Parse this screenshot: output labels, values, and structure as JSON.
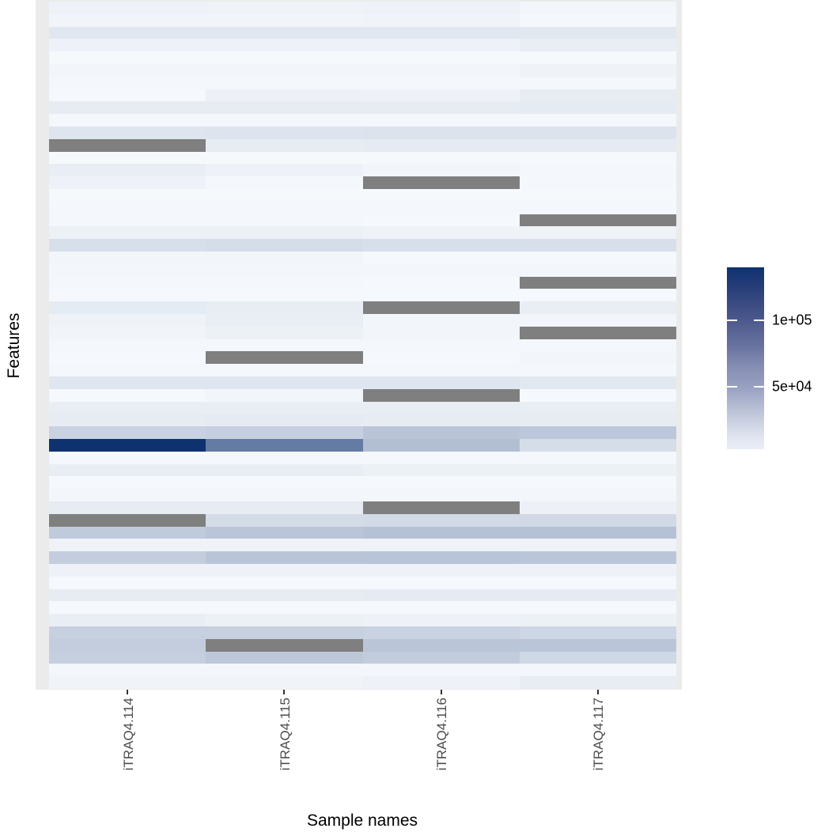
{
  "figure": {
    "x_axis_title": "Sample names",
    "y_axis_title": "Features"
  },
  "chart_data": {
    "type": "heatmap",
    "title": "",
    "xlabel": "Sample names",
    "ylabel": "Features",
    "legend_position": "right",
    "grid": false,
    "y_tick_labels_shown": false,
    "columns": [
      "iTRAQ4.114",
      "iTRAQ4.115",
      "iTRAQ4.116",
      "iTRAQ4.117"
    ],
    "n_rows": 55,
    "na_color": "#7f7f7f",
    "colors": {
      "scale_low": "#f7fafd",
      "scale_high": "#0e3270",
      "panel_background": "#ebebeb",
      "axis_text": "#4d4d4d",
      "axis_title": "#000000",
      "tick_mark": "#333333"
    },
    "scale": {
      "min": 3000,
      "max": 140000,
      "ticks": [
        {
          "value": 100000,
          "label": "1e+05"
        },
        {
          "value": 50000,
          "label": "5e+04"
        }
      ]
    },
    "values": [
      [
        8300,
        7700,
        8300,
        5900
      ],
      [
        6500,
        6500,
        7100,
        4800
      ],
      [
        15900,
        15900,
        15900,
        15300
      ],
      [
        8300,
        8300,
        8300,
        11200
      ],
      [
        3600,
        3600,
        3600,
        3600
      ],
      [
        5900,
        5900,
        5900,
        7700
      ],
      [
        4800,
        4800,
        4800,
        4800
      ],
      [
        4200,
        8900,
        8300,
        12400
      ],
      [
        12400,
        12400,
        12400,
        13600
      ],
      [
        4800,
        4800,
        4800,
        4800
      ],
      [
        17100,
        18300,
        18900,
        18900
      ],
      [
        null,
        12400,
        13000,
        13000
      ],
      [
        3600,
        3600,
        3600,
        3600
      ],
      [
        11200,
        8300,
        5900,
        4800
      ],
      [
        8300,
        4800,
        null,
        4800
      ],
      [
        3600,
        3600,
        3600,
        3600
      ],
      [
        4800,
        4800,
        4800,
        4800
      ],
      [
        4800,
        4800,
        4200,
        null
      ],
      [
        9500,
        9500,
        7700,
        7700
      ],
      [
        21800,
        23000,
        21800,
        21200
      ],
      [
        5900,
        5900,
        4200,
        4200
      ],
      [
        5400,
        5400,
        5400,
        5400
      ],
      [
        4800,
        4800,
        4200,
        null
      ],
      [
        4200,
        4200,
        4200,
        4200
      ],
      [
        13600,
        11800,
        null,
        11200
      ],
      [
        7700,
        11200,
        5900,
        5900
      ],
      [
        6500,
        9500,
        5900,
        null
      ],
      [
        4800,
        4800,
        4800,
        4800
      ],
      [
        4200,
        null,
        4200,
        5900
      ],
      [
        4800,
        4800,
        4800,
        4800
      ],
      [
        16500,
        16500,
        16500,
        15300
      ],
      [
        4200,
        5900,
        null,
        4200
      ],
      [
        11200,
        11200,
        11200,
        11200
      ],
      [
        12400,
        13000,
        12400,
        12400
      ],
      [
        30600,
        32400,
        39500,
        37700
      ],
      [
        140000,
        89400,
        43600,
        23000
      ],
      [
        4800,
        4800,
        4800,
        4800
      ],
      [
        11200,
        11200,
        9500,
        9500
      ],
      [
        4200,
        4200,
        4200,
        4200
      ],
      [
        5400,
        5400,
        5400,
        5400
      ],
      [
        12400,
        12400,
        null,
        8900
      ],
      [
        null,
        24200,
        24800,
        25900
      ],
      [
        35900,
        38900,
        41800,
        41800
      ],
      [
        7700,
        7700,
        7700,
        7700
      ],
      [
        33600,
        39500,
        40000,
        38900
      ],
      [
        8300,
        8300,
        8300,
        8300
      ],
      [
        4200,
        4200,
        4200,
        4200
      ],
      [
        12400,
        12400,
        13000,
        13000
      ],
      [
        4200,
        4200,
        4200,
        4200
      ],
      [
        11200,
        9500,
        8300,
        9500
      ],
      [
        31800,
        31800,
        30600,
        27700
      ],
      [
        33600,
        null,
        38900,
        38900
      ],
      [
        32400,
        37700,
        34200,
        26500
      ],
      [
        5400,
        5400,
        5400,
        5400
      ],
      [
        7100,
        7100,
        8300,
        11800
      ]
    ]
  }
}
